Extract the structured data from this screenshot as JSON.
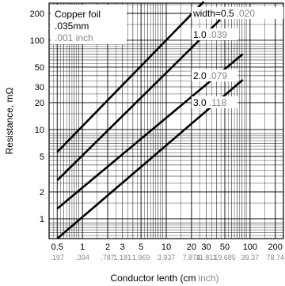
{
  "chart_data": {
    "type": "line",
    "scale": {
      "x": "log",
      "y": "log"
    },
    "xlim": [
      0.4,
      250
    ],
    "ylim": [
      0.6,
      260
    ],
    "xlabel": "Conductor lenth (cm",
    "xlabel_unit": "inch)",
    "ylabel": "Resistance, mΩ",
    "x_ticks": [
      {
        "value": 0.5,
        "cm": "0.5",
        "inch": ".197"
      },
      {
        "value": 1,
        "cm": "1",
        "inch": ".394"
      },
      {
        "value": 2,
        "cm": "2",
        "inch": ".787"
      },
      {
        "value": 3,
        "cm": "3",
        "inch": "1.181"
      },
      {
        "value": 5,
        "cm": "5",
        "inch": "1.969"
      },
      {
        "value": 10,
        "cm": "10",
        "inch": "3.937"
      },
      {
        "value": 20,
        "cm": "20",
        "inch": "7.874"
      },
      {
        "value": 30,
        "cm": "30",
        "inch": "11.811"
      },
      {
        "value": 50,
        "cm": "50",
        "inch": "19.685"
      },
      {
        "value": 100,
        "cm": "100",
        "inch": "39.37"
      },
      {
        "value": 200,
        "cm": "200",
        "inch": "78.74"
      }
    ],
    "y_ticks": [
      {
        "value": 1,
        "label": "1"
      },
      {
        "value": 2,
        "label": "2"
      },
      {
        "value": 5,
        "label": "5"
      },
      {
        "value": 10,
        "label": "10"
      },
      {
        "value": 20,
        "label": "20"
      },
      {
        "value": 30,
        "label": "30"
      },
      {
        "value": 50,
        "label": "50"
      },
      {
        "value": 100,
        "label": "100"
      },
      {
        "value": 200,
        "label": "200"
      }
    ],
    "grid": true,
    "series": [
      {
        "label": "width=0.5",
        "label_inch": ".020",
        "x": [
          0.5,
          28
        ],
        "y": [
          5.6,
          270
        ]
      },
      {
        "label": "1.0",
        "label_inch": ".039",
        "x": [
          0.5,
          44
        ],
        "y": [
          2.7,
          170
        ]
      },
      {
        "label": "2.0",
        "label_inch": ".079",
        "x": [
          0.5,
          82
        ],
        "y": [
          1.3,
          70
        ]
      },
      {
        "label": "3.0",
        "label_inch": ".118",
        "x": [
          0.5,
          82
        ],
        "y": [
          0.6,
          36
        ]
      }
    ],
    "annotation": {
      "line1": "Copper foil",
      "line2": ".035mm",
      "line3": ".001 inch"
    }
  }
}
